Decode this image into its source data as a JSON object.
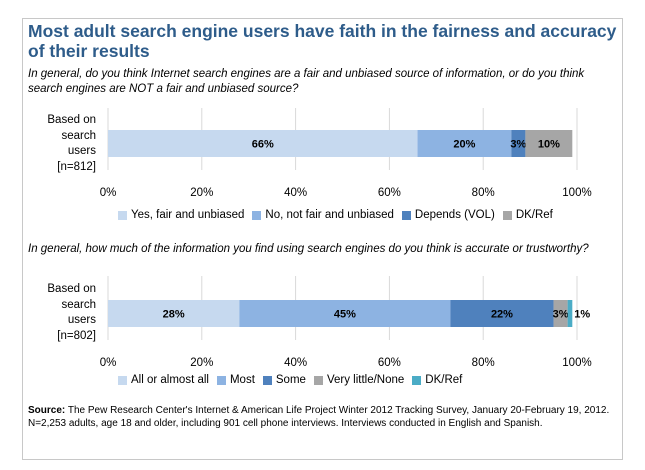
{
  "title": "Most adult search engine users have faith in the fairness and accuracy of their results",
  "chart_data": [
    {
      "type": "bar",
      "orientation": "horizontal-stacked",
      "question": "In general, do you think Internet search engines are a fair and unbiased source of information, or do you think search engines are NOT a fair and unbiased source?",
      "row_label": [
        "Based on",
        "search",
        "users",
        "[n=812]"
      ],
      "xlim": [
        0,
        100
      ],
      "xticks": [
        "0%",
        "20%",
        "40%",
        "60%",
        "80%",
        "100%"
      ],
      "series": [
        {
          "name": "Yes, fair and unbiased",
          "value": 66,
          "label": "66%",
          "color": "#c6d9ef",
          "label_position": "inside"
        },
        {
          "name": "No, not fair and unbiased",
          "value": 20,
          "label": "20%",
          "color": "#8db3e2",
          "label_position": "inside"
        },
        {
          "name": "Depends (VOL)",
          "value": 3,
          "label": "3%",
          "color": "#4f81bd",
          "label_position": "inside"
        },
        {
          "name": "DK/Ref",
          "value": 10,
          "label": "10%",
          "color": "#a6a6a6",
          "label_position": "inside"
        }
      ]
    },
    {
      "type": "bar",
      "orientation": "horizontal-stacked",
      "question": "In general, how much of the information you find using search engines do you think is accurate or trustworthy?",
      "row_label": [
        "Based on",
        "search",
        "users",
        "[n=802]"
      ],
      "xlim": [
        0,
        100
      ],
      "xticks": [
        "0%",
        "20%",
        "40%",
        "60%",
        "80%",
        "100%"
      ],
      "series": [
        {
          "name": "All or almost all",
          "value": 28,
          "label": "28%",
          "color": "#c6d9ef",
          "label_position": "inside"
        },
        {
          "name": "Most",
          "value": 45,
          "label": "45%",
          "color": "#8db3e2",
          "label_position": "inside"
        },
        {
          "name": "Some",
          "value": 22,
          "label": "22%",
          "color": "#4f81bd",
          "label_position": "inside"
        },
        {
          "name": "Very little/None",
          "value": 3,
          "label": "3%",
          "color": "#a6a6a6",
          "label_position": "inside"
        },
        {
          "name": "DK/Ref",
          "value": 1,
          "label": "1%",
          "color": "#4bacc6",
          "label_position": "outside"
        }
      ]
    }
  ],
  "source": {
    "label": "Source:",
    "text": " The Pew Research Center's Internet & American Life Project Winter 2012 Tracking Survey, January 20-February 19, 2012. N=2,253 adults, age 18 and older, including 901 cell phone interviews. Interviews conducted in English and Spanish."
  }
}
